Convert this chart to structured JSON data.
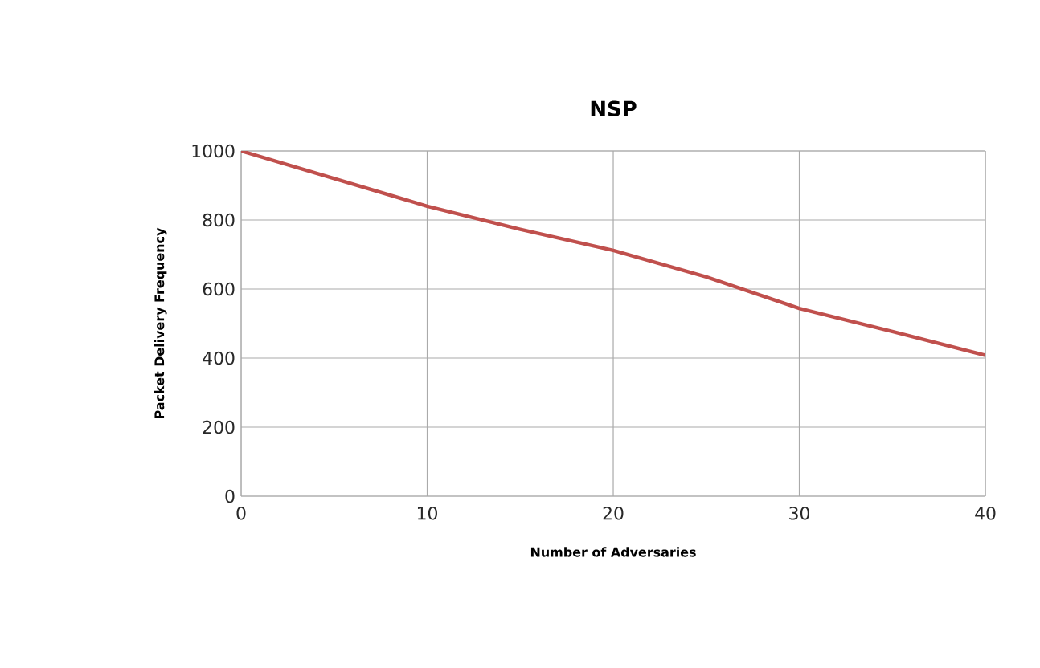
{
  "chart_data": {
    "type": "line",
    "title": "NSP",
    "xlabel": "Number of Adversaries",
    "ylabel": "Packet Delivery Frequency",
    "x": [
      0,
      5,
      10,
      15,
      20,
      25,
      30,
      35,
      40
    ],
    "series": [
      {
        "color": "#c0504d",
        "values": [
          1000,
          920,
          840,
          773,
          712,
          635,
          544,
          477,
          408
        ]
      }
    ],
    "xlim": [
      0,
      40
    ],
    "ylim": [
      0,
      1000
    ],
    "xticks": [
      0,
      10,
      20,
      30,
      40
    ],
    "yticks": [
      0,
      200,
      400,
      600,
      800,
      1000
    ],
    "grid": true,
    "marker": "none",
    "line_style": "solid"
  }
}
